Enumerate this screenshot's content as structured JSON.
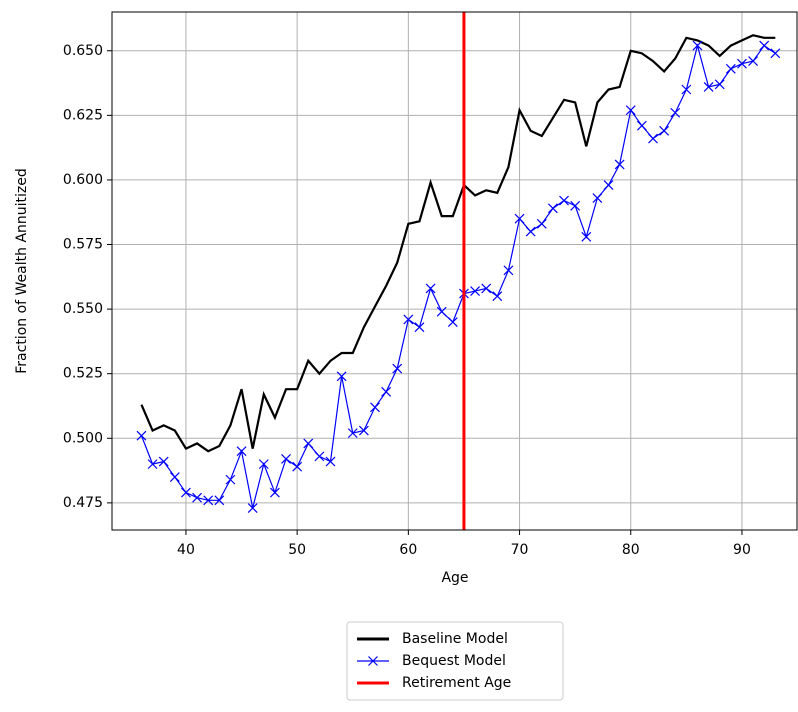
{
  "chart_data": {
    "type": "line",
    "xlabel": "Age",
    "ylabel": "Fraction of Wealth Annuitized",
    "x": [
      36,
      37,
      38,
      39,
      40,
      41,
      42,
      43,
      44,
      45,
      46,
      47,
      48,
      49,
      50,
      51,
      52,
      53,
      54,
      55,
      56,
      57,
      58,
      59,
      60,
      61,
      62,
      63,
      64,
      65,
      66,
      67,
      68,
      69,
      70,
      71,
      72,
      73,
      74,
      75,
      76,
      77,
      78,
      79,
      80,
      81,
      82,
      83,
      84,
      85,
      86,
      87,
      88,
      89,
      90,
      91,
      92,
      93
    ],
    "series": [
      {
        "name": "Baseline Model",
        "color": "#000000",
        "marker": "none",
        "values": [
          0.513,
          0.503,
          0.505,
          0.503,
          0.496,
          0.498,
          0.495,
          0.497,
          0.505,
          0.519,
          0.496,
          0.517,
          0.508,
          0.519,
          0.519,
          0.53,
          0.525,
          0.53,
          0.533,
          0.533,
          0.543,
          0.551,
          0.559,
          0.568,
          0.583,
          0.584,
          0.599,
          0.586,
          0.586,
          0.598,
          0.594,
          0.596,
          0.595,
          0.605,
          0.627,
          0.619,
          0.617,
          0.624,
          0.631,
          0.63,
          0.613,
          0.63,
          0.635,
          0.636,
          0.65,
          0.649,
          0.646,
          0.642,
          0.647,
          0.655,
          0.654,
          0.652,
          0.648,
          0.652,
          0.654,
          0.656,
          0.655,
          0.655
        ]
      },
      {
        "name": "Bequest Model",
        "color": "#0000ff",
        "marker": "x",
        "values": [
          0.501,
          0.49,
          0.491,
          0.485,
          0.479,
          0.477,
          0.476,
          0.476,
          0.484,
          0.495,
          0.473,
          0.49,
          0.479,
          0.492,
          0.489,
          0.498,
          0.493,
          0.491,
          0.524,
          0.502,
          0.503,
          0.512,
          0.518,
          0.527,
          0.546,
          0.543,
          0.558,
          0.549,
          0.545,
          0.556,
          0.557,
          0.558,
          0.555,
          0.565,
          0.585,
          0.58,
          0.583,
          0.589,
          0.592,
          0.59,
          0.578,
          0.593,
          0.598,
          0.606,
          0.627,
          0.621,
          0.616,
          0.619,
          0.626,
          0.635,
          0.652,
          0.636,
          0.637,
          0.643,
          0.645,
          0.646,
          0.652,
          0.649
        ]
      }
    ],
    "vlines": [
      {
        "name": "Retirement Age",
        "color": "#ff0000",
        "x": 65
      }
    ],
    "xlim": [
      33.35,
      94.95
    ],
    "ylim": [
      0.4645,
      0.665
    ],
    "xticks": [
      40,
      50,
      60,
      70,
      80,
      90
    ],
    "yticks": [
      0.475,
      {
        "value": 0.5,
        "label": "0.500"
      },
      0.525,
      {
        "value": 0.55,
        "label": "0.550"
      },
      0.575,
      {
        "value": 0.6,
        "label": "0.600"
      },
      0.625,
      {
        "value": 0.65,
        "label": "0.650"
      }
    ],
    "grid": true,
    "legend": "below"
  }
}
